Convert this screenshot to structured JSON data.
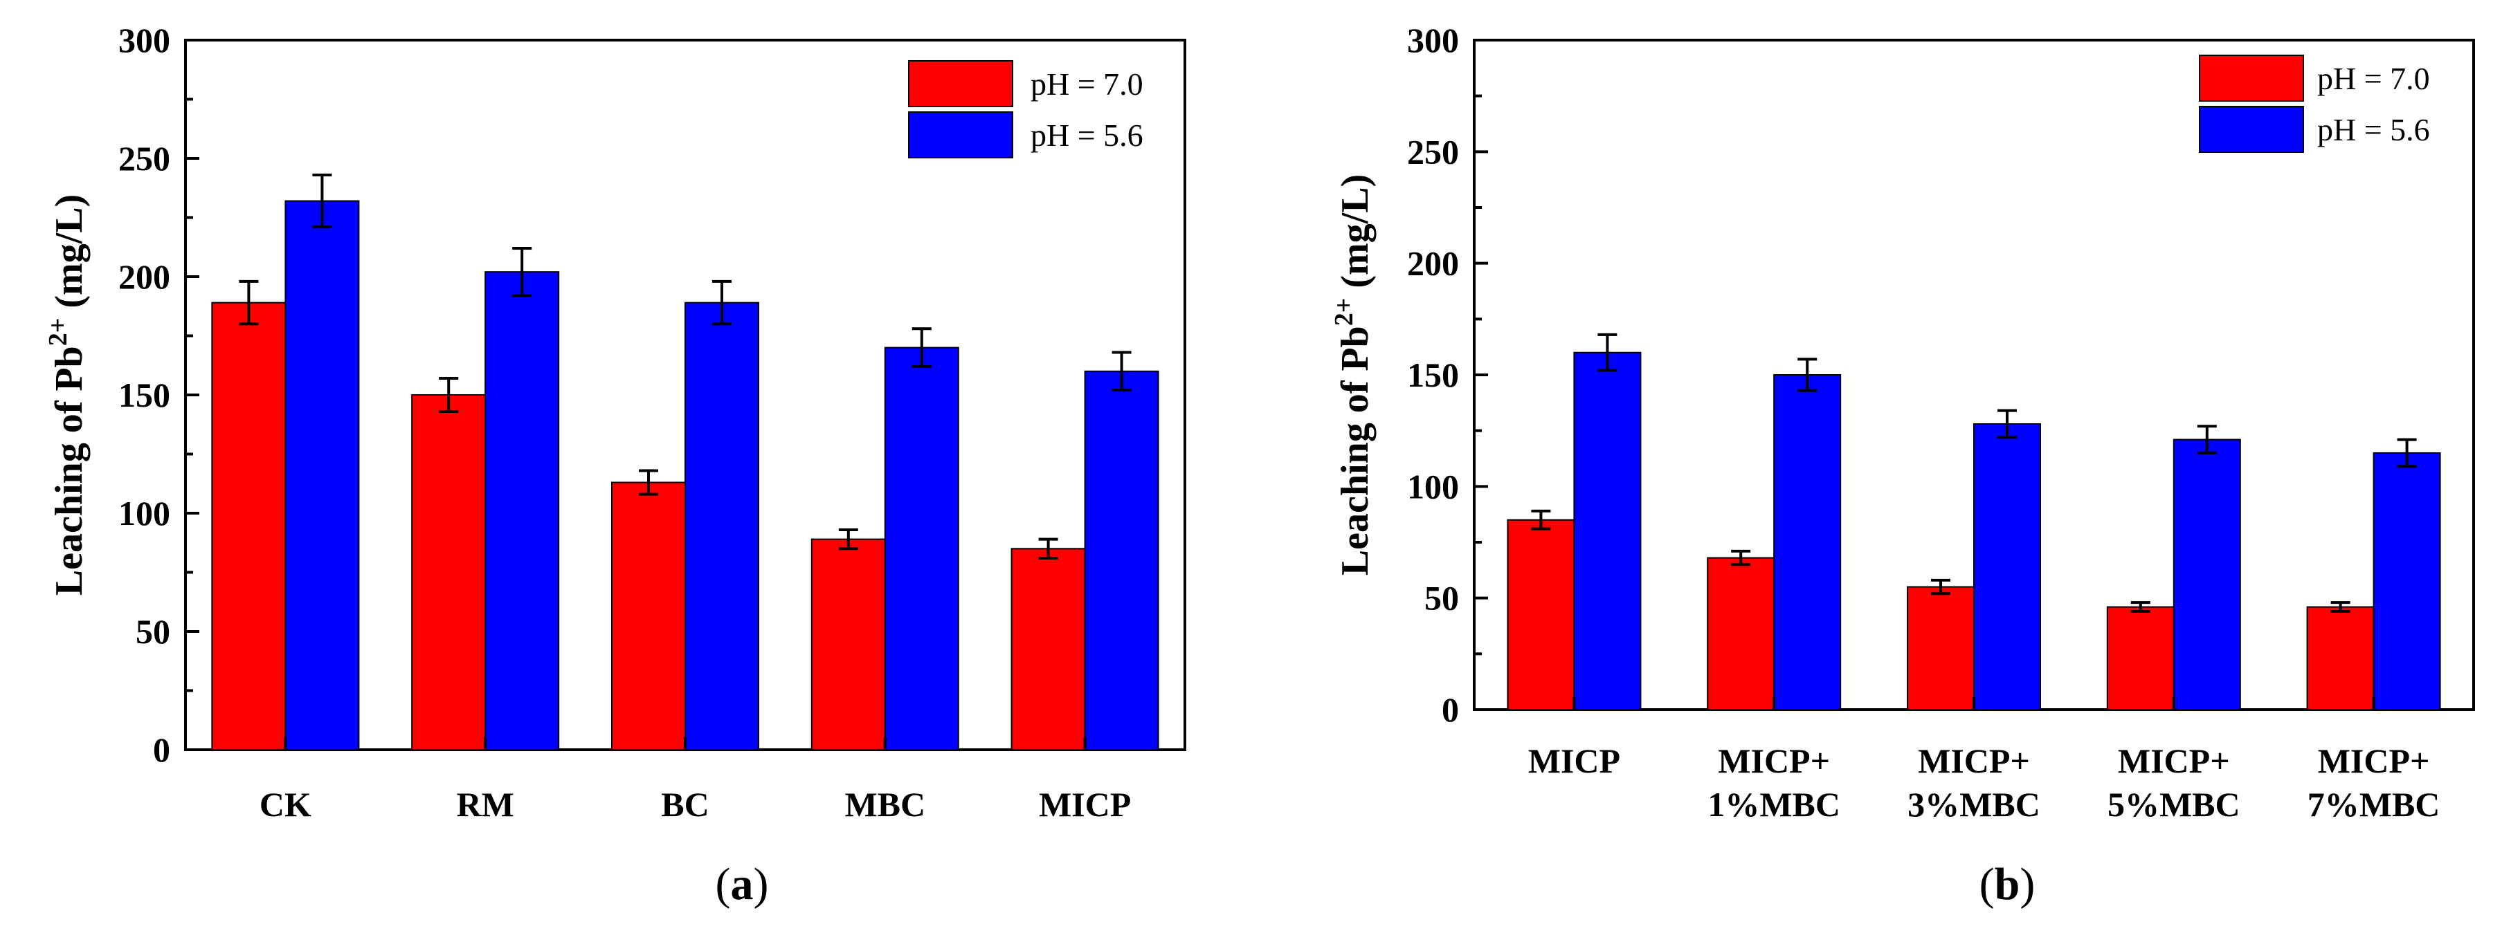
{
  "chart_data": [
    {
      "type": "bar",
      "panel_label": "(a)",
      "panel_letter": "a",
      "ylabel_pre": "Leaching of Pb",
      "ylabel_sup": "2+",
      "ylabel_post": " (mg/L)",
      "ylim": [
        0,
        300
      ],
      "yticks": [
        0,
        50,
        100,
        150,
        200,
        250,
        300
      ],
      "categories": [
        [
          "CK"
        ],
        [
          "RM"
        ],
        [
          "BC"
        ],
        [
          "MBC"
        ],
        [
          "MICP"
        ]
      ],
      "series": [
        {
          "name": "pH = 7.0",
          "color": "#ff0000",
          "values": [
            189,
            150,
            113,
            89,
            85
          ],
          "errors": [
            9,
            7,
            5,
            4,
            4
          ]
        },
        {
          "name": "pH = 5.6",
          "color": "#0000ff",
          "values": [
            232,
            202,
            189,
            170,
            160
          ],
          "errors": [
            11,
            10,
            9,
            8,
            8
          ]
        }
      ],
      "legend_position": "top-right"
    },
    {
      "type": "bar",
      "panel_label": "(b)",
      "panel_letter": "b",
      "ylabel_pre": "Leaching of Pb",
      "ylabel_sup": "2+",
      "ylabel_post": " (mg/L)",
      "ylim": [
        0,
        300
      ],
      "yticks": [
        0,
        50,
        100,
        150,
        200,
        250,
        300
      ],
      "categories": [
        [
          "MICP"
        ],
        [
          "MICP+",
          "1%MBC"
        ],
        [
          "MICP+",
          "3%MBC"
        ],
        [
          "MICP+",
          "5%MBC"
        ],
        [
          "MICP+",
          "7%MBC"
        ]
      ],
      "series": [
        {
          "name": "pH = 7.0",
          "color": "#ff0000",
          "values": [
            85,
            68,
            55,
            46,
            46
          ],
          "errors": [
            4,
            3,
            3,
            2,
            2
          ]
        },
        {
          "name": "pH = 5.6",
          "color": "#0000ff",
          "values": [
            160,
            150,
            128,
            121,
            115
          ],
          "errors": [
            8,
            7,
            6,
            6,
            6
          ]
        }
      ],
      "legend_position": "top-right"
    }
  ]
}
